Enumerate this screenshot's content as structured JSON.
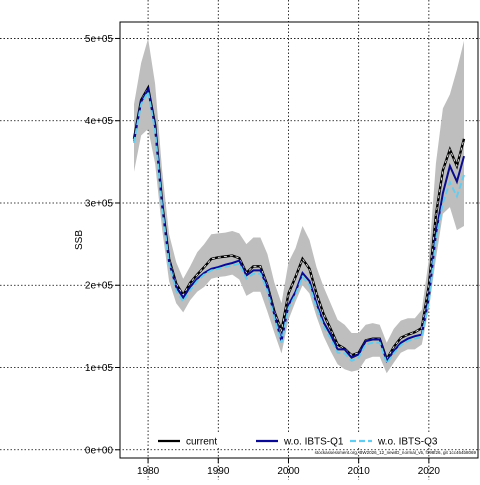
{
  "chart_data": {
    "type": "line",
    "title": "",
    "xlabel": "",
    "ylabel": "SSB",
    "xlim": [
      1976,
      2027
    ],
    "ylim": [
      -10000,
      520000
    ],
    "x_ticks": [
      1980,
      1990,
      2000,
      2010,
      2020
    ],
    "x_tick_labels": [
      "1980",
      "1990",
      "2000",
      "2010",
      "2020"
    ],
    "y_ticks": [
      0,
      100000,
      200000,
      300000,
      400000,
      500000
    ],
    "y_tick_labels": [
      "0e+00",
      "1e+05",
      "2e+05",
      "3e+05",
      "4e+05",
      "5e+05"
    ],
    "grid": true,
    "legend_position": "bottom",
    "footnote": "stockassessment.org, BW2026_12_newID_normal_v5, f198f26, git 1cc464b8069",
    "x": [
      1978,
      1979,
      1980,
      1981,
      1982,
      1983,
      1984,
      1985,
      1986,
      1987,
      1988,
      1989,
      1990,
      1991,
      1992,
      1993,
      1994,
      1995,
      1996,
      1997,
      1998,
      1999,
      2000,
      2001,
      2002,
      2003,
      2004,
      2005,
      2006,
      2007,
      2008,
      2009,
      2010,
      2011,
      2012,
      2013,
      2014,
      2015,
      2016,
      2017,
      2018,
      2019,
      2020,
      2021,
      2022,
      2023,
      2024,
      2025
    ],
    "band": {
      "upper": [
        420000,
        470000,
        500000,
        445000,
        340000,
        262000,
        228000,
        208000,
        223000,
        240000,
        250000,
        262000,
        263000,
        264000,
        266000,
        263000,
        250000,
        258000,
        258000,
        238000,
        203000,
        178000,
        228000,
        245000,
        272000,
        255000,
        222000,
        198000,
        178000,
        158000,
        152000,
        142000,
        142000,
        152000,
        154000,
        152000,
        130000,
        147000,
        157000,
        160000,
        160000,
        170000,
        232000,
        348000,
        415000,
        432000,
        462000,
        497000
      ],
      "lower": [
        338000,
        382000,
        390000,
        348000,
        268000,
        205000,
        178000,
        167000,
        182000,
        192000,
        198000,
        208000,
        210000,
        211000,
        213000,
        207000,
        187000,
        192000,
        192000,
        168000,
        142000,
        117000,
        158000,
        180000,
        200000,
        190000,
        162000,
        138000,
        120000,
        104000,
        98000,
        95000,
        97000,
        110000,
        113000,
        113000,
        93000,
        106000,
        118000,
        122000,
        122000,
        128000,
        172000,
        232000,
        287000,
        295000,
        267000,
        272000
      ],
      "color": "#bebebe"
    },
    "series": [
      {
        "name": "current",
        "color": "#000000",
        "dash": "",
        "values": [
          378000,
          425000,
          440000,
          395000,
          300000,
          232000,
          202000,
          188000,
          203000,
          213000,
          222000,
          232000,
          234000,
          235000,
          236000,
          233000,
          215000,
          223000,
          223000,
          200000,
          168000,
          145000,
          190000,
          210000,
          232000,
          220000,
          190000,
          165000,
          147000,
          128000,
          123000,
          115000,
          118000,
          133000,
          135000,
          135000,
          110000,
          125000,
          136000,
          140000,
          143000,
          148000,
          200000,
          285000,
          340000,
          365000,
          345000,
          378000
        ]
      },
      {
        "name": "w.o. IBTS-Q1",
        "color": "#0a0a8c",
        "dash": "",
        "values": [
          375000,
          423000,
          438000,
          392000,
          297000,
          228000,
          198000,
          185000,
          198000,
          208000,
          215000,
          220000,
          222000,
          225000,
          227000,
          230000,
          212000,
          218000,
          218000,
          197000,
          164000,
          132000,
          176000,
          192000,
          215000,
          205000,
          178000,
          155000,
          140000,
          122000,
          122000,
          112000,
          116000,
          132000,
          134000,
          134000,
          108000,
          120000,
          130000,
          135000,
          138000,
          140000,
          185000,
          262000,
          312000,
          345000,
          326000,
          357000
        ]
      },
      {
        "name": "w.o. IBTS-Q3",
        "color": "#66ccee",
        "dash": "6,3",
        "values": [
          373000,
          420000,
          435000,
          388000,
          294000,
          226000,
          193000,
          180000,
          194000,
          205000,
          213000,
          218000,
          220000,
          222000,
          224000,
          226000,
          208000,
          214000,
          214000,
          193000,
          160000,
          130000,
          172000,
          188000,
          210000,
          200000,
          173000,
          150000,
          135000,
          118000,
          117000,
          108000,
          112000,
          128000,
          130000,
          130000,
          105000,
          117000,
          127000,
          132000,
          135000,
          137000,
          180000,
          255000,
          300000,
          325000,
          308000,
          334000
        ]
      }
    ]
  }
}
